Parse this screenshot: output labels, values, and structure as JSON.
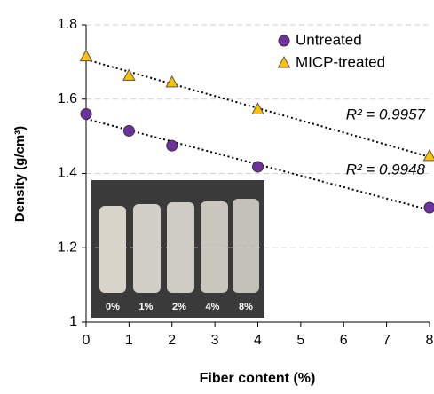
{
  "chart_data": {
    "type": "scatter",
    "x_label": "Fiber content (%)",
    "y_label": "Density (g/cm³)",
    "x": [
      0,
      1,
      2,
      4,
      8
    ],
    "series": [
      {
        "name": "Untreated",
        "color": "#7030a0",
        "marker": "circle",
        "values": [
          1.56,
          1.515,
          1.475,
          1.418,
          1.308
        ]
      },
      {
        "name": "MICP-treated",
        "color": "#ffc000",
        "marker": "triangle",
        "values": [
          1.715,
          1.663,
          1.645,
          1.572,
          1.447
        ]
      }
    ],
    "annotations": [
      "R² = 0.9948",
      "R² = 0.9957"
    ],
    "inset_labels": [
      "0%",
      "1%",
      "2%",
      "4%",
      "8%"
    ],
    "xlim": [
      0,
      8
    ],
    "xticks": [
      0,
      1,
      2,
      3,
      4,
      5,
      6,
      7,
      8
    ],
    "ylim": [
      1,
      1.8
    ],
    "yticks": [
      1,
      1.2,
      1.4,
      1.6,
      1.8
    ],
    "grid": true,
    "legend": "top-right"
  }
}
